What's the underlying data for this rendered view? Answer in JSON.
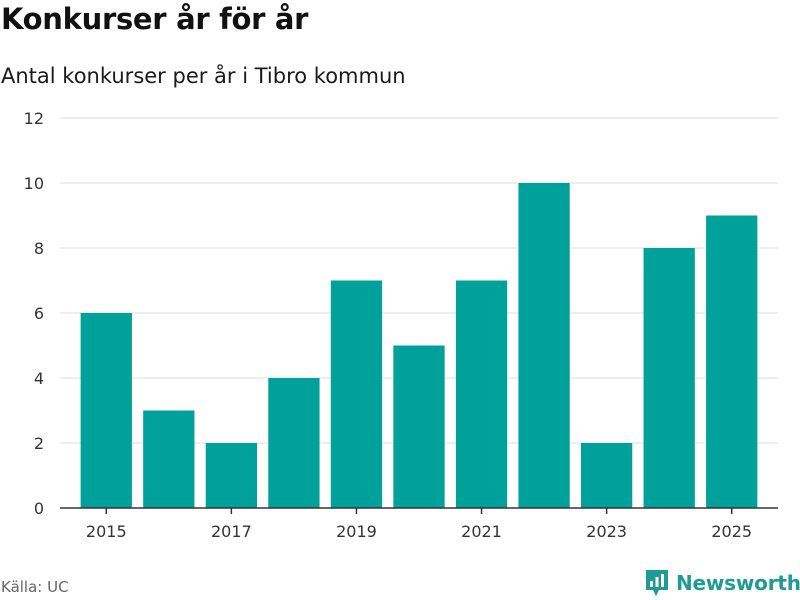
{
  "header": {
    "title": "Konkurser år för år",
    "subtitle": "Antal konkurser per år i Tibro kommun"
  },
  "footer": {
    "source": "Källa: UC",
    "brand": "Newsworthy"
  },
  "colors": {
    "bar": "#00a19a",
    "grid": "#dddddd",
    "axis": "#333333",
    "brand": "#1e9c93"
  },
  "chart_data": {
    "type": "bar",
    "categories": [
      2015,
      2016,
      2017,
      2018,
      2019,
      2020,
      2021,
      2022,
      2023,
      2024,
      2025
    ],
    "values": [
      6,
      3,
      2,
      4,
      7,
      5,
      7,
      10,
      2,
      8,
      9
    ],
    "x_tick_labels": [
      "2015",
      "2017",
      "2019",
      "2021",
      "2023",
      "2025"
    ],
    "y_ticks": [
      0,
      2,
      4,
      6,
      8,
      10,
      12
    ],
    "ylim": [
      0,
      12
    ],
    "grid": true,
    "legend": "none"
  }
}
